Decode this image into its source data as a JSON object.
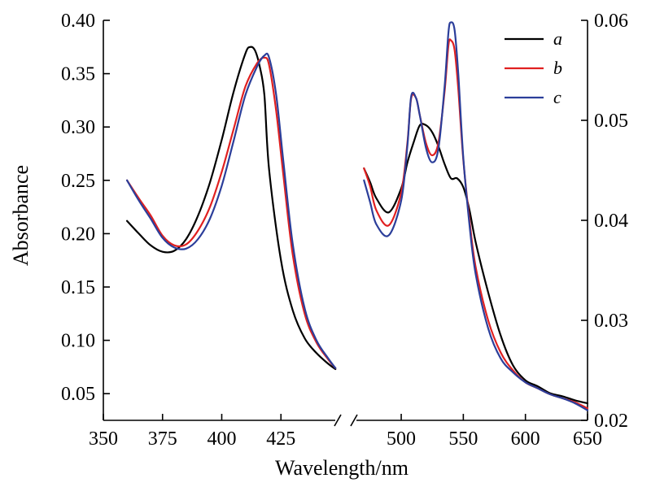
{
  "chart_data": {
    "type": "line",
    "xlabel": "Wavelength/nm",
    "ylabel_left": "Absorbance",
    "ylabel_right": "",
    "axis_break": true,
    "left_panel": {
      "xlim": [
        350,
        450
      ],
      "xticks": [
        350,
        375,
        400,
        425
      ],
      "ylim": [
        0.025,
        0.4
      ],
      "yticks": [
        0.05,
        0.1,
        0.15,
        0.2,
        0.25,
        0.3,
        0.35,
        0.4
      ],
      "yticklabels": [
        "0.05",
        "0.10",
        "0.15",
        "0.20",
        "0.25",
        "0.30",
        "0.35",
        "0.40"
      ]
    },
    "right_panel": {
      "xlim": [
        460,
        650
      ],
      "xticks": [
        500,
        550,
        600,
        650
      ],
      "ylim": [
        0.02,
        0.06
      ],
      "yticks": [
        0.02,
        0.03,
        0.04,
        0.05,
        0.06
      ],
      "yticklabels": [
        "0.02",
        "0.03",
        "0.04",
        "0.05",
        "0.06"
      ]
    },
    "legend": {
      "position": "top-right"
    },
    "series": [
      {
        "name": "a",
        "color": "#000000",
        "left": {
          "x": [
            360,
            365,
            370,
            375,
            380,
            385,
            390,
            395,
            400,
            405,
            410,
            412,
            414,
            416,
            418,
            420,
            425,
            430,
            435,
            440,
            445,
            448
          ],
          "y": [
            0.212,
            0.2,
            0.189,
            0.183,
            0.184,
            0.195,
            0.217,
            0.248,
            0.288,
            0.333,
            0.369,
            0.375,
            0.372,
            0.357,
            0.33,
            0.26,
            0.175,
            0.128,
            0.102,
            0.088,
            0.078,
            0.073
          ]
        },
        "right": {
          "x": [
            470,
            475,
            480,
            490,
            500,
            505,
            510,
            515,
            520,
            525,
            530,
            535,
            540,
            545,
            550,
            555,
            560,
            570,
            580,
            590,
            600,
            610,
            620,
            630,
            640,
            650
          ],
          "y": [
            0.0452,
            0.0438,
            0.0422,
            0.0408,
            0.0432,
            0.0458,
            0.0478,
            0.0495,
            0.0495,
            0.0488,
            0.0474,
            0.0456,
            0.0442,
            0.0442,
            0.0433,
            0.041,
            0.0378,
            0.0328,
            0.0285,
            0.0255,
            0.024,
            0.0234,
            0.0227,
            0.0224,
            0.022,
            0.0217
          ]
        }
      },
      {
        "name": "b",
        "color": "#e02020",
        "left": {
          "x": [
            360,
            365,
            370,
            375,
            380,
            385,
            390,
            395,
            400,
            405,
            410,
            415,
            418,
            420,
            423,
            426,
            430,
            435,
            440,
            445,
            448
          ],
          "y": [
            0.25,
            0.233,
            0.217,
            0.198,
            0.189,
            0.19,
            0.203,
            0.225,
            0.258,
            0.298,
            0.338,
            0.36,
            0.365,
            0.358,
            0.315,
            0.255,
            0.18,
            0.125,
            0.098,
            0.082,
            0.074
          ]
        },
        "right": {
          "x": [
            470,
            475,
            480,
            490,
            500,
            505,
            508,
            512,
            515,
            520,
            525,
            530,
            535,
            538,
            540,
            543,
            546,
            550,
            555,
            560,
            570,
            580,
            590,
            600,
            610,
            620,
            630,
            640,
            650
          ],
          "y": [
            0.0452,
            0.0434,
            0.041,
            0.0395,
            0.0428,
            0.0478,
            0.0522,
            0.0522,
            0.0505,
            0.0477,
            0.0465,
            0.0478,
            0.053,
            0.0575,
            0.058,
            0.057,
            0.053,
            0.046,
            0.04,
            0.0353,
            0.03,
            0.0268,
            0.025,
            0.0238,
            0.0232,
            0.0226,
            0.0222,
            0.0218,
            0.0212
          ]
        }
      },
      {
        "name": "c",
        "color": "#2b3e9a",
        "left": {
          "x": [
            360,
            365,
            370,
            375,
            380,
            385,
            390,
            395,
            400,
            405,
            410,
            415,
            418,
            420,
            423,
            426,
            430,
            435,
            440,
            445,
            448
          ],
          "y": [
            0.25,
            0.231,
            0.214,
            0.196,
            0.187,
            0.186,
            0.195,
            0.214,
            0.245,
            0.287,
            0.33,
            0.357,
            0.367,
            0.365,
            0.33,
            0.268,
            0.19,
            0.13,
            0.1,
            0.083,
            0.074
          ]
        },
        "right": {
          "x": [
            470,
            475,
            480,
            490,
            500,
            505,
            508,
            512,
            515,
            520,
            525,
            530,
            535,
            538,
            540,
            543,
            546,
            550,
            555,
            560,
            570,
            580,
            590,
            600,
            610,
            620,
            630,
            640,
            650
          ],
          "y": [
            0.044,
            0.0418,
            0.0396,
            0.0385,
            0.042,
            0.0475,
            0.0524,
            0.0522,
            0.0505,
            0.0472,
            0.0458,
            0.0472,
            0.0535,
            0.0588,
            0.0598,
            0.059,
            0.0545,
            0.0462,
            0.0395,
            0.0346,
            0.0292,
            0.0262,
            0.0248,
            0.0238,
            0.0232,
            0.0226,
            0.0222,
            0.0217,
            0.021
          ]
        }
      }
    ]
  }
}
